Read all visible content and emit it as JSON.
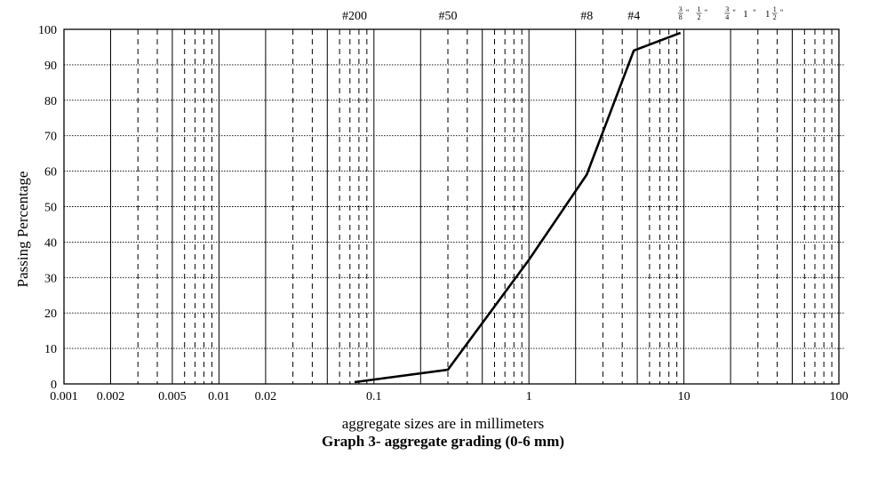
{
  "chart_data": {
    "type": "line",
    "title": "Graph 3- aggregate grading (0-6 mm)",
    "xlabel": "aggregate sizes are in millimeters",
    "ylabel": "Passing Percentage",
    "x_scale": "log",
    "xlim": [
      0.001,
      100
    ],
    "ylim": [
      0,
      100
    ],
    "grid": true,
    "x_ticks": [
      {
        "value": 0.001,
        "label": "0.001"
      },
      {
        "value": 0.002,
        "label": "0.002"
      },
      {
        "value": 0.005,
        "label": "0.005"
      },
      {
        "value": 0.01,
        "label": "0.01"
      },
      {
        "value": 0.02,
        "label": "0.02"
      },
      {
        "value": 0.1,
        "label": "0.1"
      },
      {
        "value": 1,
        "label": "1"
      },
      {
        "value": 10,
        "label": "10"
      },
      {
        "value": 100,
        "label": "100"
      }
    ],
    "y_ticks": [
      {
        "value": 0,
        "label": "0"
      },
      {
        "value": 10,
        "label": "10"
      },
      {
        "value": 20,
        "label": "20"
      },
      {
        "value": 30,
        "label": "30"
      },
      {
        "value": 40,
        "label": "40"
      },
      {
        "value": 50,
        "label": "50"
      },
      {
        "value": 60,
        "label": "60"
      },
      {
        "value": 70,
        "label": "70"
      },
      {
        "value": 80,
        "label": "80"
      },
      {
        "value": 90,
        "label": "90"
      },
      {
        "value": 100,
        "label": "100"
      }
    ],
    "sieve_labels": [
      {
        "size": 0.075,
        "label": "#200"
      },
      {
        "size": 0.3,
        "label": "#50"
      },
      {
        "size": 2.36,
        "label": "#8"
      },
      {
        "size": 4.75,
        "label": "#4"
      }
    ],
    "inch_labels": [
      {
        "size": 9.5,
        "num": "3",
        "den": "8",
        "whole": "",
        "suffix": "“"
      },
      {
        "size": 12.5,
        "num": "1",
        "den": "2",
        "whole": "",
        "suffix": "“"
      },
      {
        "size": 19,
        "num": "3",
        "den": "4",
        "whole": "",
        "suffix": "“"
      },
      {
        "size": 25,
        "num": "",
        "den": "",
        "whole": "1",
        "suffix": "“"
      },
      {
        "size": 37.5,
        "num": "1",
        "den": "2",
        "whole": "1",
        "suffix": "“"
      }
    ],
    "series": [
      {
        "x": [
          0.075,
          0.3,
          1,
          2.36,
          4.75,
          9.5
        ],
        "y": [
          0.5,
          4,
          35,
          59,
          94,
          99
        ]
      }
    ]
  }
}
